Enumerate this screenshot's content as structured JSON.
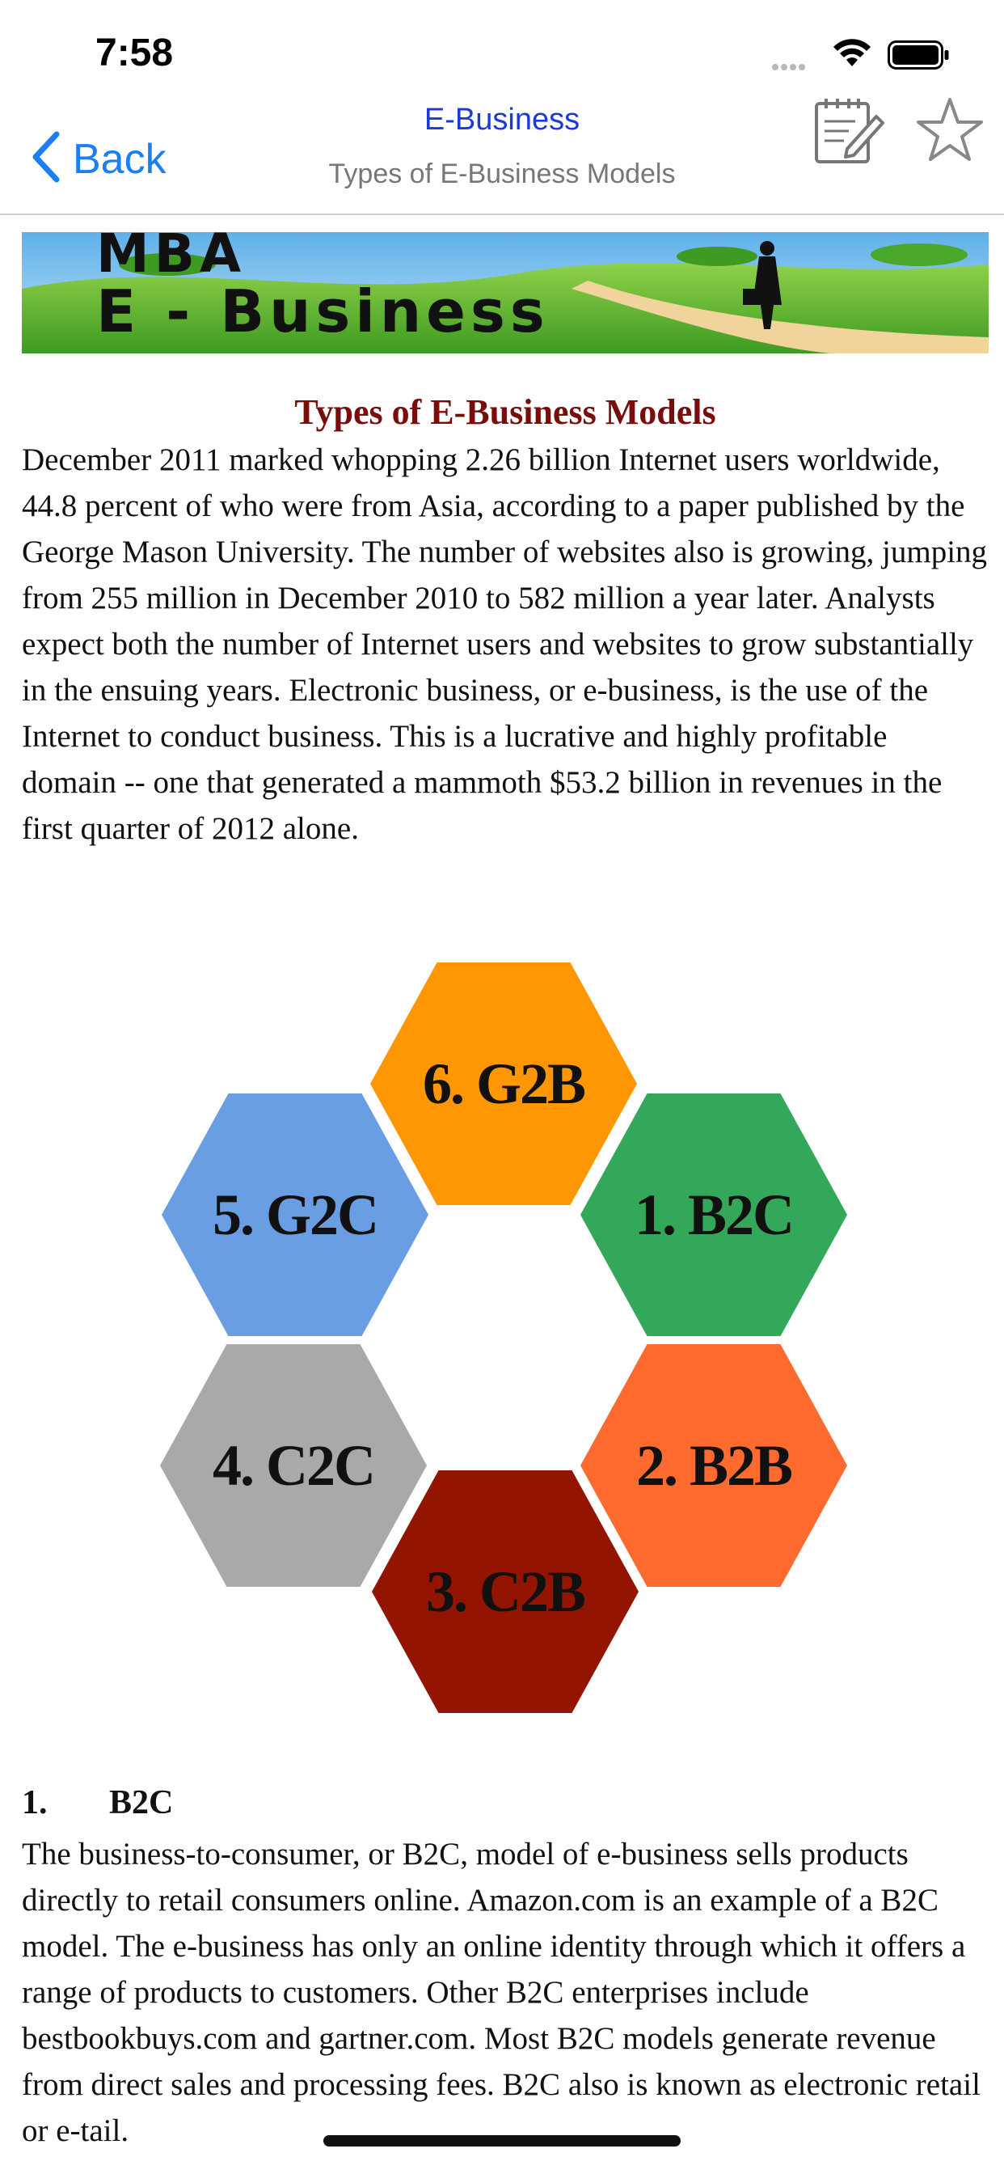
{
  "status_bar": {
    "time": "7:58"
  },
  "nav": {
    "back_label": "Back",
    "title": "E-Business",
    "subtitle": "Types of E-Business Models"
  },
  "banner": {
    "line1": "MBA",
    "line2": "E - Business"
  },
  "article": {
    "title": "Types of E-Business Models",
    "intro": "December 2011 marked whopping 2.26 billion Internet users worldwide, 44.8 percent of who were from Asia, according to a paper published by the George Mason University. The number of websites also is growing, jumping from 255 million in December 2010 to 582 million a year later. Analysts expect both the number of Internet users and websites to grow substantially in the ensuing years. Electronic business, or e-business, is the use of the Internet to conduct business. This is a lucrative and highly profitable domain -- one that generated a mammoth $53.2 billion in revenues in the first quarter of 2012 alone."
  },
  "diagram": {
    "hexagons": [
      {
        "label": "1. B2C",
        "color": "#34a85a"
      },
      {
        "label": "2. B2B",
        "color": "#ff6a2e"
      },
      {
        "label": "3. C2B",
        "color": "#931400"
      },
      {
        "label": "4. C2C",
        "color": "#a9a9a9"
      },
      {
        "label": "5. G2C",
        "color": "#6a9ee3"
      },
      {
        "label": "6. G2B",
        "color": "#ff9705"
      }
    ]
  },
  "section1": {
    "number": "1.",
    "heading": "B2C",
    "body": "The business-to-consumer, or B2C, model of e-business sells products directly to retail consumers online. Amazon.com is an example of a B2C model. The e-business has only an online identity through which it offers a range of products to customers. Other B2C enterprises include bestbookbuys.com and gartner.com. Most B2C models generate revenue from direct sales and processing fees. B2C also is known as electronic retail or e-tail."
  },
  "icons": {
    "back": "chevron-left-icon",
    "notes": "notepad-pencil-icon",
    "favorite": "star-outline-icon",
    "wifi": "wifi-icon",
    "battery": "battery-icon"
  },
  "colors": {
    "accent": "#1a7ff5",
    "title_red": "#7b0c0c"
  }
}
